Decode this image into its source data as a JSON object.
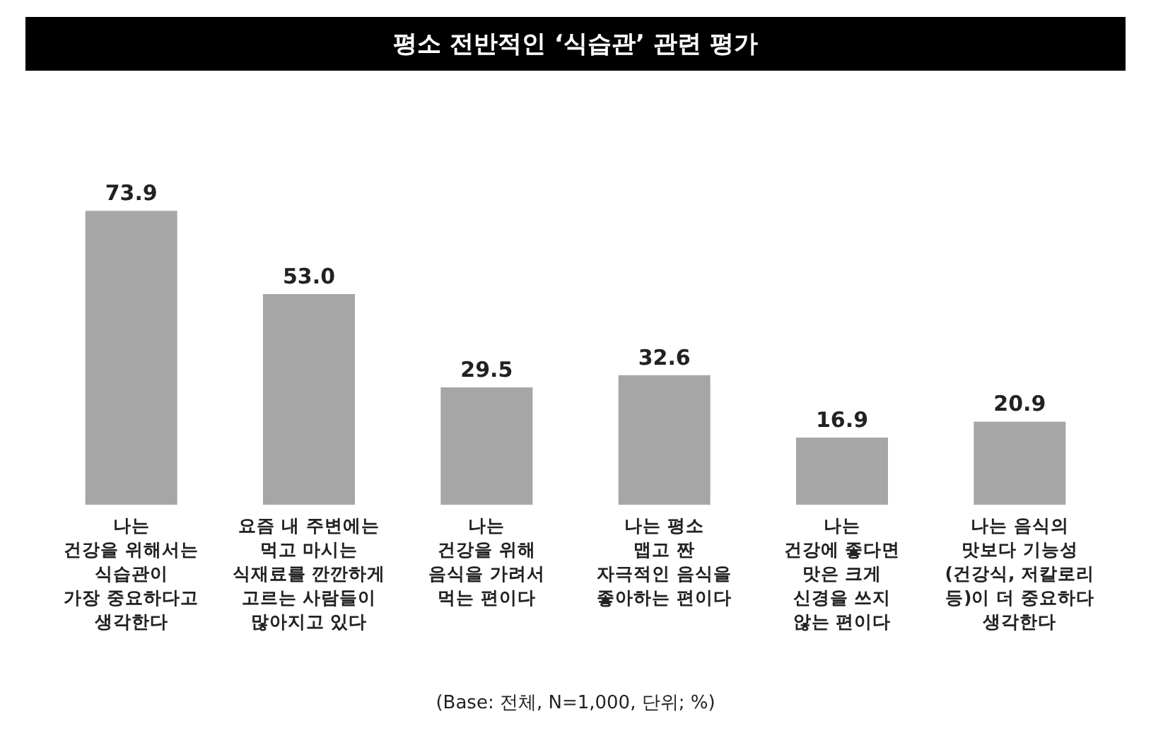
{
  "chart_data": {
    "type": "bar",
    "title": "평소 전반적인 ‘식습관’ 관련 평가",
    "categories": [
      "나는\n건강을 위해서는\n식습관이\n가장 중요하다고\n생각한다",
      "요즘 내 주변에는\n먹고 마시는\n식재료를 깐깐하게\n고르는 사람들이\n많아지고 있다",
      "나는\n건강을 위해\n음식을 가려서\n먹는 편이다",
      "나는 평소\n맵고 짠\n자극적인 음식을\n좋아하는 편이다",
      "나는\n건강에 좋다면\n맛은 크게\n신경을 쓰지\n않는 편이다",
      "나는 음식의\n맛보다 기능성\n(건강식, 저칼로리\n등)이 더 중요하다\n생각한다"
    ],
    "values": [
      73.9,
      53.0,
      29.5,
      32.6,
      16.9,
      20.9
    ],
    "value_labels": [
      "73.9",
      "53.0",
      "29.5",
      "32.6",
      "16.9",
      "20.9"
    ],
    "color": "#a6a6a6",
    "annotations": [
      "(Base: 전체, N=1,000, 단위; %)"
    ]
  }
}
